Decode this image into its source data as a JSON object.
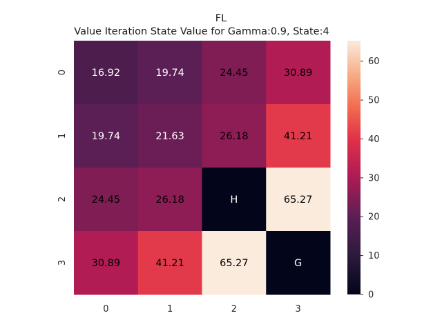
{
  "chart_data": {
    "type": "heatmap",
    "title": "FL",
    "subtitle": "Value Iteration State Value for Gamma:0.9, State:4",
    "x_ticks": [
      "0",
      "1",
      "2",
      "3"
    ],
    "y_ticks": [
      "0",
      "1",
      "2",
      "3"
    ],
    "values": [
      [
        16.92,
        19.74,
        24.45,
        30.89
      ],
      [
        19.74,
        21.63,
        26.18,
        41.21
      ],
      [
        24.45,
        26.18,
        0,
        65.27
      ],
      [
        30.89,
        41.21,
        65.27,
        0
      ]
    ],
    "cell_labels": [
      [
        "16.92",
        "19.74",
        "24.45",
        "30.89"
      ],
      [
        "19.74",
        "21.63",
        "26.18",
        "41.21"
      ],
      [
        "24.45",
        "26.18",
        "H",
        "65.27"
      ],
      [
        "30.89",
        "41.21",
        "65.27",
        "G"
      ]
    ],
    "colorbar": {
      "min": 0,
      "max": 65.27,
      "ticks": [
        0,
        10,
        20,
        30,
        40,
        50,
        60
      ],
      "colormap": "rocket"
    },
    "grid": false,
    "legend": "colorbar-right"
  }
}
